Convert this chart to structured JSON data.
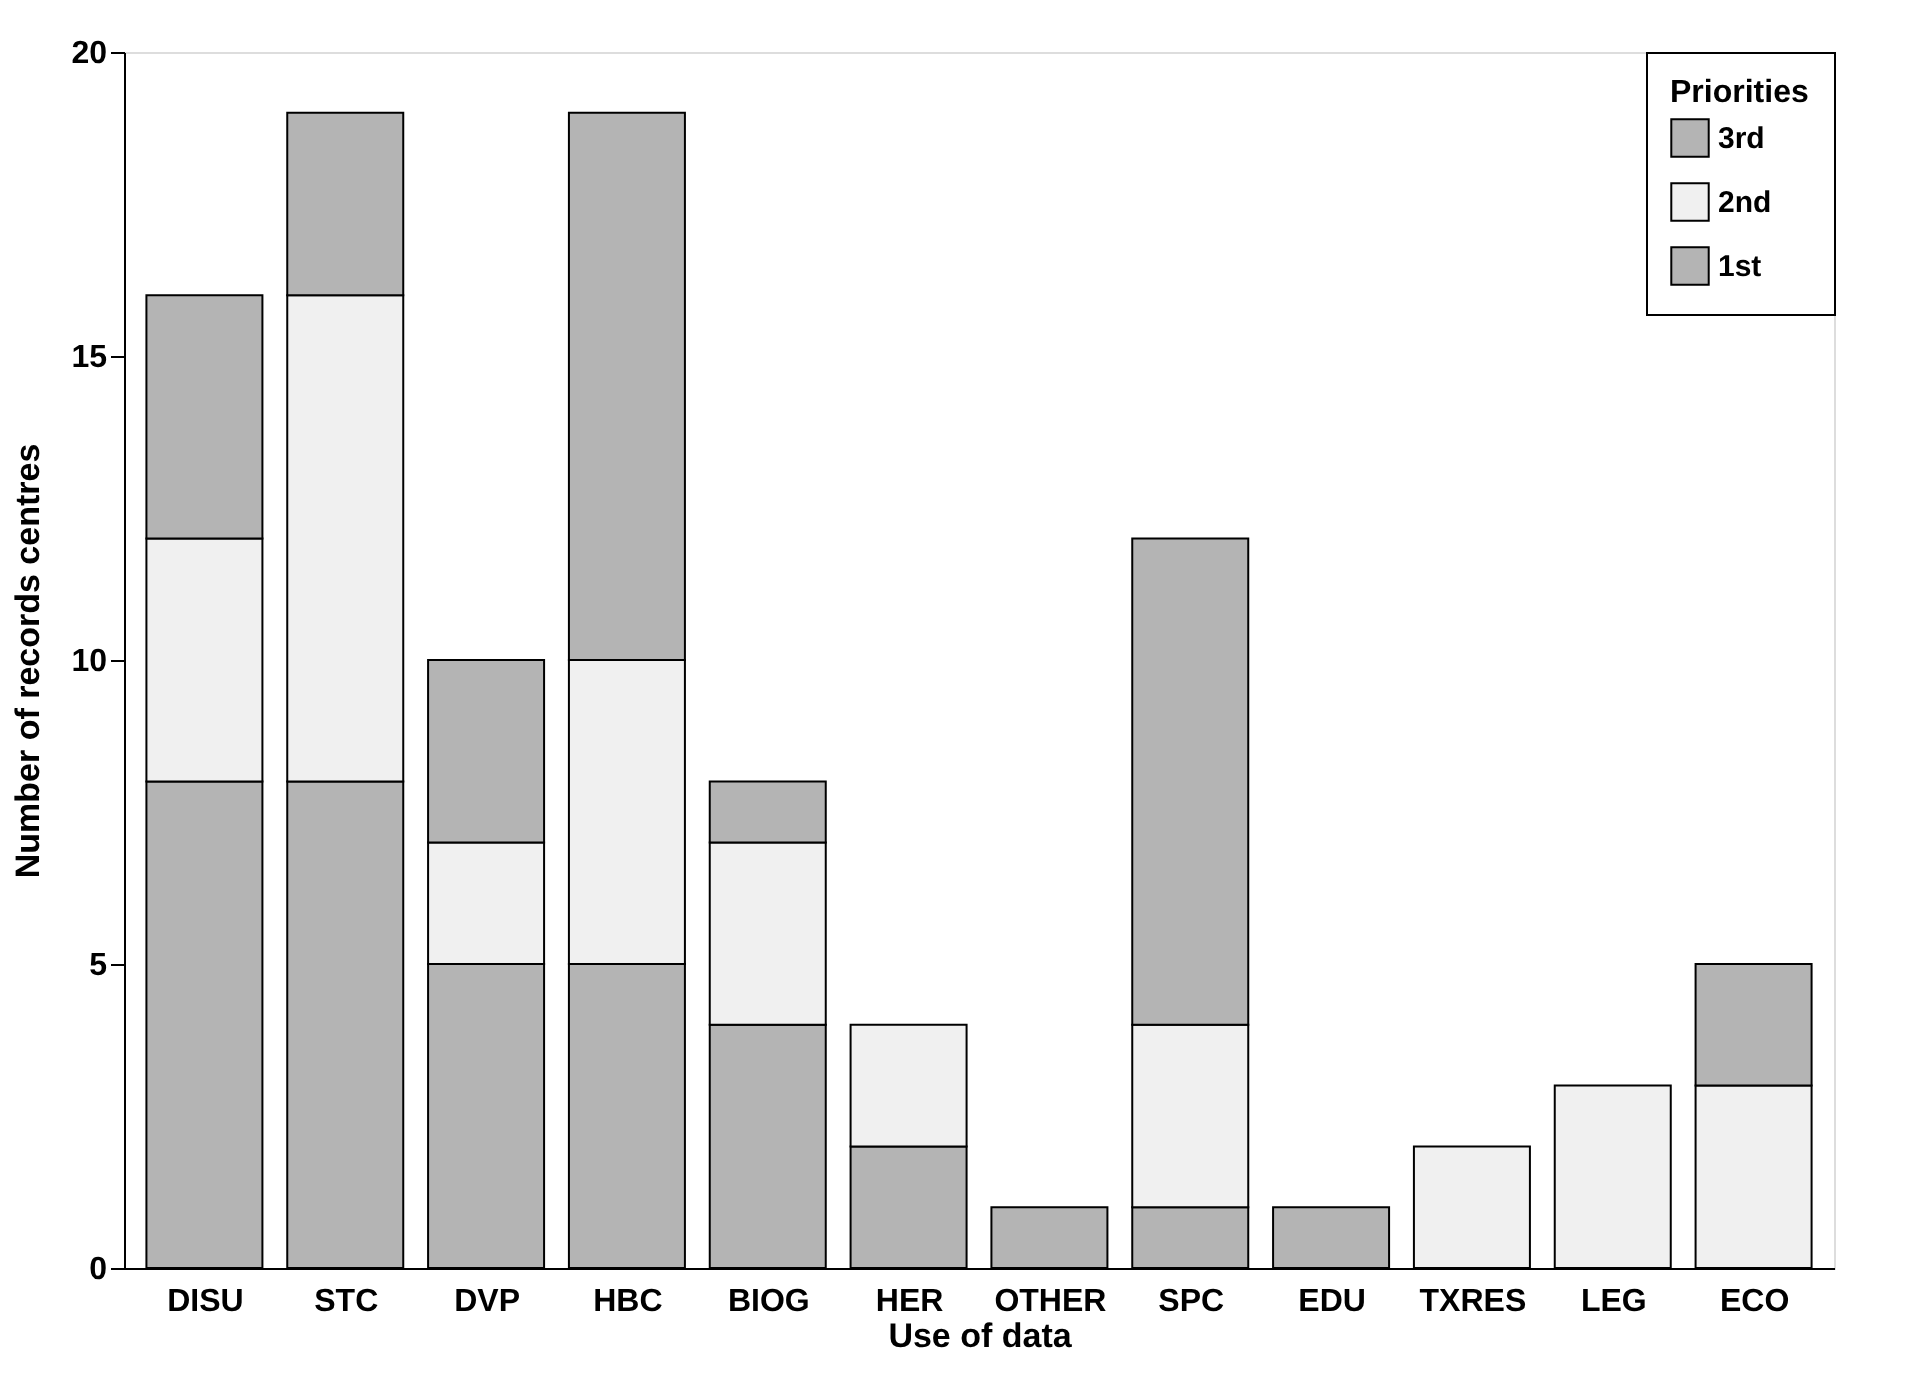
{
  "chart_data": {
    "type": "bar",
    "stacked": true,
    "xlabel": "Use of data",
    "ylabel": "Number of records centres",
    "legend_title": "Priorities",
    "legend": "top right",
    "categories": [
      "DISU",
      "STC",
      "DVP",
      "HBC",
      "BIOG",
      "HER",
      "OTHER",
      "SPC",
      "EDU",
      "TXRES",
      "LEG",
      "ECO"
    ],
    "series": [
      {
        "name": "1st",
        "color": "#b4b4b4",
        "values": [
          8,
          8,
          5,
          5,
          4,
          2,
          1,
          1,
          1,
          0,
          0,
          0
        ]
      },
      {
        "name": "2nd",
        "color": "#f0f0f0",
        "values": [
          4,
          8,
          2,
          5,
          3,
          2,
          0,
          3,
          0,
          2,
          3,
          3
        ]
      },
      {
        "name": "3rd",
        "color": "#b4b4b4",
        "values": [
          4,
          3,
          3,
          9,
          1,
          0,
          0,
          8,
          0,
          0,
          0,
          2
        ]
      }
    ],
    "ylim": [
      0,
      20
    ],
    "yticks": [
      0,
      5,
      10,
      15,
      20
    ],
    "grid": false
  }
}
